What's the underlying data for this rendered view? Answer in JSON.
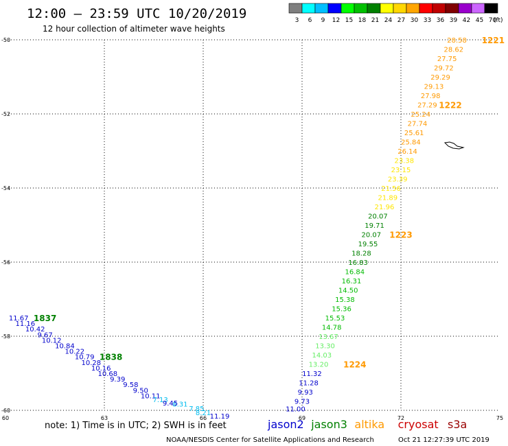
{
  "header": {
    "title": "12:00 – 23:59 UTC 10/20/2019",
    "subtitle": "12 hour collection of altimeter wave heights"
  },
  "legend_scale": {
    "unit": "(ft)",
    "bins": [
      {
        "label": "3",
        "color": "#7f7f7f"
      },
      {
        "label": "6",
        "color": "#00ffff"
      },
      {
        "label": "9",
        "color": "#00bfff"
      },
      {
        "label": "12",
        "color": "#0000ff"
      },
      {
        "label": "15",
        "color": "#00ff00"
      },
      {
        "label": "18",
        "color": "#00c000"
      },
      {
        "label": "21",
        "color": "#008000"
      },
      {
        "label": "24",
        "color": "#ffff00"
      },
      {
        "label": "27",
        "color": "#ffd700"
      },
      {
        "label": "30",
        "color": "#ffa500"
      },
      {
        "label": "33",
        "color": "#ff0000"
      },
      {
        "label": "36",
        "color": "#c00000"
      },
      {
        "label": "39",
        "color": "#800000"
      },
      {
        "label": "42",
        "color": "#9900cc"
      },
      {
        "label": "45",
        "color": "#cc66ff"
      },
      {
        "label": "70",
        "color": "#000000"
      }
    ]
  },
  "footer": {
    "note": "note: 1) Time is in UTC; 2) SWH is in feet",
    "satellites": [
      {
        "name": "jason2",
        "color": "#0000cc"
      },
      {
        "name": "jason3",
        "color": "#008000"
      },
      {
        "name": "altika",
        "color": "#ff9900"
      },
      {
        "name": "cryosat",
        "color": "#cc0000"
      },
      {
        "name": "s3a",
        "color": "#990000"
      }
    ],
    "credit": "NOAA/NESDIS Center for Satellite Applications and Research",
    "timestamp": "Oct 21 12:27:39 UTC 2019"
  },
  "chart_data": {
    "type": "scatter",
    "title": "12:00 – 23:59 UTC 10/20/2019",
    "subtitle": "12 hour collection of altimeter wave heights",
    "x_range": [
      60,
      75
    ],
    "y_range": [
      -60,
      -50
    ],
    "x_ticks": [
      60,
      63,
      66,
      69,
      72,
      75
    ],
    "x_tick_labels": [
      "60",
      "63",
      "66",
      "69",
      "72",
      "75"
    ],
    "y_ticks": [
      -50,
      -52,
      -54,
      -56,
      -58,
      -60
    ],
    "y_tick_labels": [
      "-50",
      "-52",
      "-54",
      "-56",
      "-58",
      "-60"
    ],
    "grid": true,
    "series": [
      {
        "color": "#ff9900",
        "points": [
          {
            "lon": 73.7,
            "lat": -50.0,
            "v": "28.58"
          },
          {
            "lon": 73.6,
            "lat": -50.25,
            "v": "28.62"
          },
          {
            "lon": 73.4,
            "lat": -50.5,
            "v": "27.75"
          },
          {
            "lon": 73.3,
            "lat": -50.75,
            "v": "29.72"
          },
          {
            "lon": 73.2,
            "lat": -51.0,
            "v": "29.29"
          },
          {
            "lon": 73.0,
            "lat": -51.25,
            "v": "29.13"
          },
          {
            "lon": 72.9,
            "lat": -51.5,
            "v": "27.98"
          },
          {
            "lon": 72.8,
            "lat": -51.75,
            "v": "27.29"
          },
          {
            "lon": 72.6,
            "lat": -52.0,
            "v": "25.24"
          },
          {
            "lon": 72.5,
            "lat": -52.25,
            "v": "27.74"
          },
          {
            "lon": 72.4,
            "lat": -52.5,
            "v": "25.61"
          },
          {
            "lon": 72.3,
            "lat": -52.75,
            "v": "25.84"
          },
          {
            "lon": 72.2,
            "lat": -53.0,
            "v": "26.14"
          }
        ]
      },
      {
        "color": "#ffe600",
        "points": [
          {
            "lon": 72.1,
            "lat": -53.25,
            "v": "23.38"
          },
          {
            "lon": 72.0,
            "lat": -53.5,
            "v": "23.15"
          },
          {
            "lon": 71.9,
            "lat": -53.75,
            "v": "23.39"
          },
          {
            "lon": 71.7,
            "lat": -54.0,
            "v": "21.56"
          },
          {
            "lon": 71.6,
            "lat": -54.25,
            "v": "21.89"
          },
          {
            "lon": 71.5,
            "lat": -54.5,
            "v": "21.96"
          }
        ]
      },
      {
        "color": "#008000",
        "points": [
          {
            "lon": 71.3,
            "lat": -54.75,
            "v": "20.07"
          },
          {
            "lon": 71.2,
            "lat": -55.0,
            "v": "19.71"
          },
          {
            "lon": 71.1,
            "lat": -55.25,
            "v": "20.07"
          },
          {
            "lon": 71.0,
            "lat": -55.5,
            "v": "19.55"
          },
          {
            "lon": 70.8,
            "lat": -55.75,
            "v": "18.28"
          },
          {
            "lon": 70.7,
            "lat": -56.0,
            "v": "16.83"
          }
        ]
      },
      {
        "color": "#00bb00",
        "points": [
          {
            "lon": 70.6,
            "lat": -56.25,
            "v": "16.84"
          },
          {
            "lon": 70.5,
            "lat": -56.5,
            "v": "16.31"
          },
          {
            "lon": 70.4,
            "lat": -56.75,
            "v": "14.50"
          },
          {
            "lon": 70.3,
            "lat": -57.0,
            "v": "15.38"
          },
          {
            "lon": 70.2,
            "lat": -57.25,
            "v": "15.36"
          },
          {
            "lon": 70.0,
            "lat": -57.5,
            "v": "15.53"
          },
          {
            "lon": 69.9,
            "lat": -57.75,
            "v": "14.78"
          }
        ]
      },
      {
        "color": "#66ee66",
        "points": [
          {
            "lon": 69.8,
            "lat": -58.0,
            "v": "13.67"
          },
          {
            "lon": 69.7,
            "lat": -58.25,
            "v": "13.30"
          },
          {
            "lon": 69.6,
            "lat": -58.5,
            "v": "14.03"
          },
          {
            "lon": 69.5,
            "lat": -58.75,
            "v": "13.20"
          }
        ]
      },
      {
        "color": "#0000cc",
        "points": [
          {
            "lon": 69.3,
            "lat": -59.0,
            "v": "11.32"
          },
          {
            "lon": 69.2,
            "lat": -59.25,
            "v": "11.28"
          },
          {
            "lon": 69.1,
            "lat": -59.5,
            "v": "9.93"
          },
          {
            "lon": 69.0,
            "lat": -59.75,
            "v": "9.73"
          },
          {
            "lon": 68.8,
            "lat": -59.95,
            "v": "11.00"
          }
        ]
      },
      {
        "color": "#0000cc",
        "points": [
          {
            "lon": 60.4,
            "lat": -57.5,
            "v": "11.67"
          },
          {
            "lon": 60.6,
            "lat": -57.65,
            "v": "11.16"
          },
          {
            "lon": 60.9,
            "lat": -57.8,
            "v": "10.42"
          },
          {
            "lon": 61.2,
            "lat": -57.95,
            "v": "9.67"
          },
          {
            "lon": 61.4,
            "lat": -58.1,
            "v": "10.12"
          },
          {
            "lon": 61.8,
            "lat": -58.25,
            "v": "10.84"
          },
          {
            "lon": 62.1,
            "lat": -58.4,
            "v": "10.22"
          },
          {
            "lon": 62.4,
            "lat": -58.55,
            "v": "10.79"
          },
          {
            "lon": 62.6,
            "lat": -58.7,
            "v": "10.28"
          },
          {
            "lon": 62.9,
            "lat": -58.85,
            "v": "10.16"
          },
          {
            "lon": 63.1,
            "lat": -59.0,
            "v": "10.68"
          },
          {
            "lon": 63.4,
            "lat": -59.15,
            "v": "9.39"
          },
          {
            "lon": 63.8,
            "lat": -59.3,
            "v": "9.58"
          },
          {
            "lon": 64.1,
            "lat": -59.45,
            "v": "9.50"
          },
          {
            "lon": 64.4,
            "lat": -59.6,
            "v": "10.11"
          }
        ]
      },
      {
        "color": "#00bbee",
        "points": [
          {
            "lon": 64.7,
            "lat": -59.7,
            "v": "7.13"
          },
          {
            "lon": 65.3,
            "lat": -59.82,
            "v": "8.31"
          },
          {
            "lon": 65.8,
            "lat": -59.94,
            "v": "7.85"
          },
          {
            "lon": 66.0,
            "lat": -60.06,
            "v": "8.21"
          }
        ]
      },
      {
        "color": "#0000cc",
        "points": [
          {
            "lon": 65.0,
            "lat": -59.8,
            "v": "9.45"
          },
          {
            "lon": 66.5,
            "lat": -60.15,
            "v": "11.19"
          }
        ]
      }
    ],
    "time_labels": [
      {
        "text": "1221",
        "lon": 74.8,
        "lat": -50.0,
        "color": "#ff9900"
      },
      {
        "text": "1222",
        "lon": 73.5,
        "lat": -51.75,
        "color": "#ff9900"
      },
      {
        "text": "1223",
        "lon": 72.0,
        "lat": -55.25,
        "color": "#ff9900"
      },
      {
        "text": "1224",
        "lon": 70.6,
        "lat": -58.75,
        "color": "#ff9900"
      },
      {
        "text": "1837",
        "lon": 61.2,
        "lat": -57.5,
        "color": "#008000"
      },
      {
        "text": "1838",
        "lon": 63.2,
        "lat": -58.55,
        "color": "#008000"
      }
    ]
  }
}
